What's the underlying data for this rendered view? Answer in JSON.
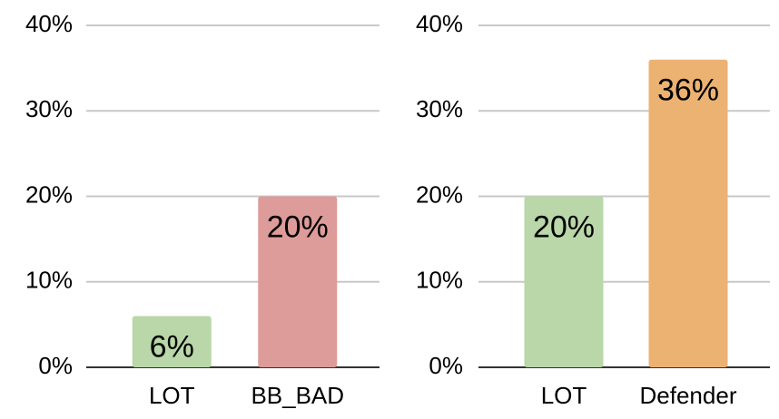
{
  "chart_data": [
    {
      "type": "bar",
      "categories": [
        "LOT",
        "BB_BAD"
      ],
      "values": [
        6,
        20
      ],
      "value_labels": [
        "6%",
        "20%"
      ],
      "colors": [
        "#b9d7a8",
        "#dd9c9a"
      ],
      "ylim": [
        0,
        40
      ],
      "yticks": [
        {
          "value": 0,
          "label": "0%"
        },
        {
          "value": 10,
          "label": "10%"
        },
        {
          "value": 20,
          "label": "20%"
        },
        {
          "value": 30,
          "label": "30%"
        },
        {
          "value": 40,
          "label": "40%"
        }
      ],
      "grid": true
    },
    {
      "type": "bar",
      "categories": [
        "LOT",
        "Defender"
      ],
      "values": [
        20,
        36
      ],
      "value_labels": [
        "20%",
        "36%"
      ],
      "colors": [
        "#b9d7a8",
        "#ecb272"
      ],
      "ylim": [
        0,
        40
      ],
      "yticks": [
        {
          "value": 0,
          "label": "0%"
        },
        {
          "value": 10,
          "label": "10%"
        },
        {
          "value": 20,
          "label": "20%"
        },
        {
          "value": 30,
          "label": "30%"
        },
        {
          "value": 40,
          "label": "40%"
        }
      ],
      "grid": true
    }
  ]
}
